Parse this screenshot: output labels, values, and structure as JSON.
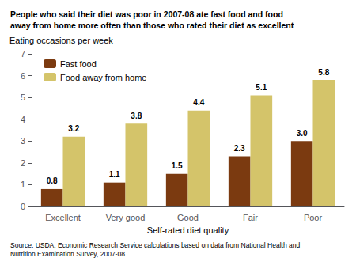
{
  "chart_data": {
    "type": "bar",
    "title": "People who said their diet was poor in 2007-08 ate fast food and food\naway from home more often than those who rated their diet as excellent",
    "ylabel": "Eating occasions per week",
    "xlabel": "Self-rated diet quality",
    "source": "Source: USDA, Economic Research Service calculations based on data from National Health and\nNutrition Examination Survey, 2007-08.",
    "categories": [
      "Excellent",
      "Very good",
      "Good",
      "Fair",
      "Poor"
    ],
    "series": [
      {
        "name": "Fast food",
        "color": "#7B3A10",
        "values": [
          0.8,
          1.1,
          1.5,
          2.3,
          3.0
        ],
        "value_labels": [
          "0.8",
          "1.1",
          "1.5",
          "2.3",
          "3.0"
        ]
      },
      {
        "name": "Food away from home",
        "color": "#D4C46A",
        "values": [
          3.2,
          3.8,
          4.4,
          5.1,
          5.8
        ]
      }
    ],
    "ylim": [
      0,
      7
    ],
    "yticks": [
      0,
      1,
      2,
      3,
      4,
      5,
      6,
      7
    ],
    "grid": false,
    "legend": "upper left",
    "data_labels": true
  }
}
